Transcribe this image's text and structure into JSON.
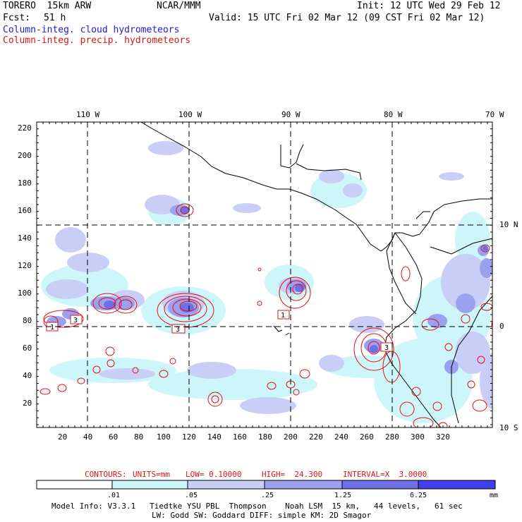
{
  "header": {
    "model": "TORERO  15km ARW",
    "org": "NCAR/MMM",
    "init": "Init: 12 UTC Wed 29 Feb 12",
    "fcst_label": "Fcst:",
    "fcst_value": "51 h",
    "valid": "Valid: 15 UTC Fri 02 Mar 12 (09 CST Fri 02 Mar 12)",
    "field1": "Column-integ. cloud hydrometeors",
    "field2": "Column-integ. precip. hydrometeors"
  },
  "map": {
    "lon_labels": [
      "110 W",
      "100 W",
      "90 W",
      "80 W",
      "70 W"
    ],
    "lat_labels": [
      "10 N",
      "0",
      "10 S"
    ],
    "y_ticks": [
      "220",
      "200",
      "180",
      "160",
      "140",
      "120",
      "100",
      "80",
      "60",
      "40",
      "20"
    ],
    "x_ticks": [
      "20",
      "40",
      "60",
      "80",
      "100",
      "120",
      "140",
      "160",
      "180",
      "200",
      "220",
      "240",
      "260",
      "280",
      "300",
      "320"
    ],
    "highs": [
      "1",
      "3",
      "3",
      "1",
      "1",
      "3"
    ]
  },
  "contours_info": {
    "label": "CONTOURS:",
    "units": "UNITS=mm",
    "low": "LOW= 0.10000",
    "high": "HIGH=  24.300",
    "interval": "INTERVAL=X  3.0000"
  },
  "colorbar": {
    "ticks": [
      ".01",
      ".05",
      ".25",
      "1.25",
      "6.25"
    ],
    "unit": "mm",
    "colors": [
      "#ffffff",
      "#cdf6fb",
      "#c8cef6",
      "#9ba1ee",
      "#6e6ee6",
      "#3f3ff0"
    ]
  },
  "footer": {
    "line1": "Model Info: V3.3.1   Tiedtke YSU PBL  Thompson    Noah LSM  15 km,   44 levels,   61 sec",
    "line2": "LW: Godd SW: Goddard DIFF: simple KM: 2D Smagor"
  }
}
